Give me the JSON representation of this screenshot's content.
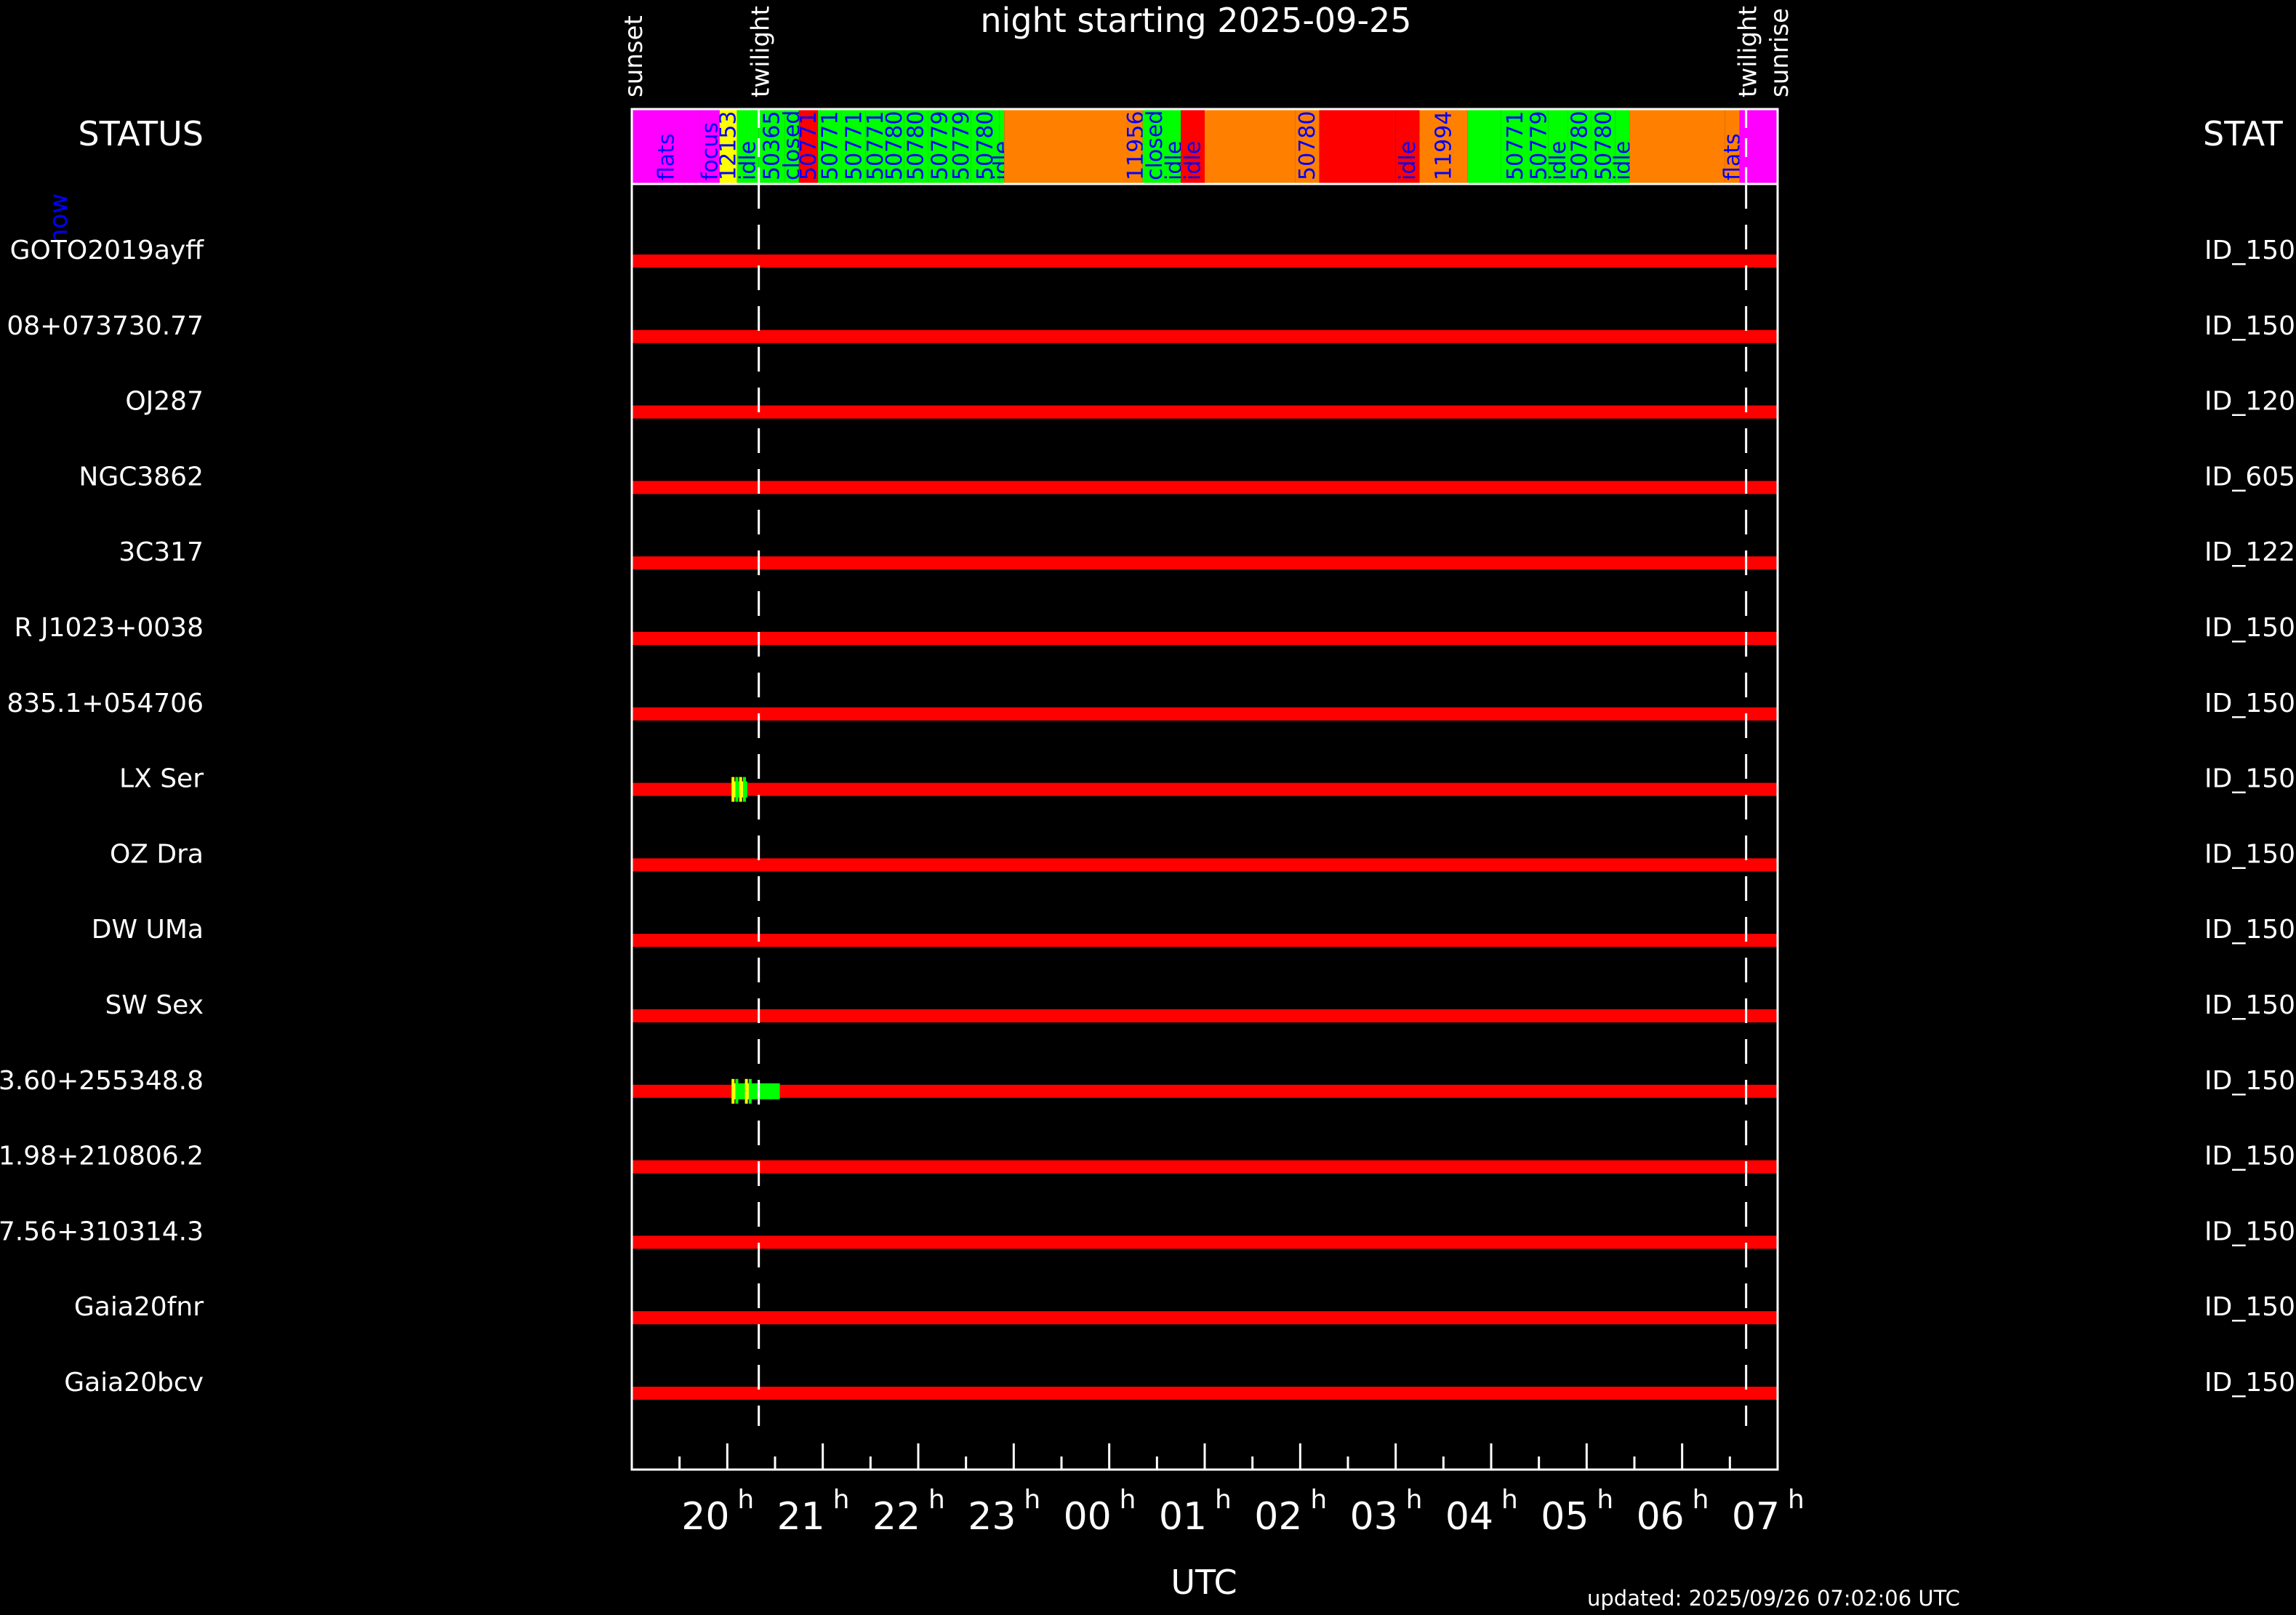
{
  "header": {
    "title": "night starting 2025-09-25",
    "status_left": "STATUS",
    "status_right": "STAT",
    "now_label": "now",
    "updated": "updated: 2025/09/26 07:02:06 UTC"
  },
  "chart_data": {
    "type": "timeline",
    "xlabel": "UTC",
    "x_range_hours": [
      19.0,
      31.0
    ],
    "x_ticks": [
      {
        "label": "20",
        "hour": 20
      },
      {
        "label": "21",
        "hour": 21
      },
      {
        "label": "22",
        "hour": 22
      },
      {
        "label": "23",
        "hour": 23
      },
      {
        "label": "00",
        "hour": 24
      },
      {
        "label": "01",
        "hour": 25
      },
      {
        "label": "02",
        "hour": 26
      },
      {
        "label": "03",
        "hour": 27
      },
      {
        "label": "04",
        "hour": 28
      },
      {
        "label": "05",
        "hour": 29
      },
      {
        "label": "06",
        "hour": 30
      },
      {
        "label": "07",
        "hour": 31
      }
    ],
    "tick_suffix": "h",
    "markers": [
      {
        "label": "sunset",
        "hour": 19.0,
        "dashed": false
      },
      {
        "label": "twilight",
        "hour": 20.33,
        "dashed": true
      },
      {
        "label": "twilight",
        "hour": 30.67,
        "dashed": true
      },
      {
        "label": "sunrise",
        "hour": 31.0,
        "dashed": false
      }
    ],
    "status_bar": [
      {
        "start": 19.0,
        "end": 19.72,
        "color": "#ff00ff",
        "label": "flats"
      },
      {
        "start": 19.72,
        "end": 19.92,
        "color": "#ff00ff",
        "label": "focus"
      },
      {
        "start": 19.92,
        "end": 20.1,
        "color": "#ffff00",
        "label": "12153"
      },
      {
        "start": 20.1,
        "end": 20.33,
        "color": "#00ff00",
        "label": "idle"
      },
      {
        "start": 20.33,
        "end": 20.6,
        "color": "#00ff00",
        "label": "50365"
      },
      {
        "start": 20.6,
        "end": 20.75,
        "color": "#00ff00",
        "label": "closed"
      },
      {
        "start": 20.75,
        "end": 20.95,
        "color": "#ff0000",
        "label": "50771"
      },
      {
        "start": 20.95,
        "end": 21.2,
        "color": "#00ff00",
        "label": "50771"
      },
      {
        "start": 21.2,
        "end": 21.45,
        "color": "#00ff00",
        "label": "50771"
      },
      {
        "start": 21.45,
        "end": 21.65,
        "color": "#00ff00",
        "label": "50771"
      },
      {
        "start": 21.65,
        "end": 21.85,
        "color": "#00ff00",
        "label": "50780"
      },
      {
        "start": 21.85,
        "end": 22.1,
        "color": "#00ff00",
        "label": "50780"
      },
      {
        "start": 22.1,
        "end": 22.35,
        "color": "#00ff00",
        "label": "50779"
      },
      {
        "start": 22.35,
        "end": 22.55,
        "color": "#00ff00",
        "label": "50779"
      },
      {
        "start": 22.55,
        "end": 22.85,
        "color": "#00ff00",
        "label": "50780"
      },
      {
        "start": 22.85,
        "end": 22.9,
        "color": "#00ff00",
        "label": "idle"
      },
      {
        "start": 22.9,
        "end": 24.2,
        "color": "#ff8000",
        "label": ""
      },
      {
        "start": 24.2,
        "end": 24.35,
        "color": "#ff8000",
        "label": "11956"
      },
      {
        "start": 24.35,
        "end": 24.6,
        "color": "#00ff00",
        "label": "closed"
      },
      {
        "start": 24.6,
        "end": 24.75,
        "color": "#00ff00",
        "label": "idle"
      },
      {
        "start": 24.75,
        "end": 25.0,
        "color": "#ff0000",
        "label": "idle"
      },
      {
        "start": 25.0,
        "end": 25.95,
        "color": "#ff8000",
        "label": ""
      },
      {
        "start": 25.95,
        "end": 26.2,
        "color": "#ff8000",
        "label": "50780"
      },
      {
        "start": 26.2,
        "end": 27.0,
        "color": "#ff0000",
        "label": ""
      },
      {
        "start": 27.0,
        "end": 27.25,
        "color": "#ff0000",
        "label": "idle"
      },
      {
        "start": 27.25,
        "end": 27.75,
        "color": "#ff8000",
        "label": "11994"
      },
      {
        "start": 27.75,
        "end": 28.1,
        "color": "#00ff00",
        "label": ""
      },
      {
        "start": 28.1,
        "end": 28.4,
        "color": "#00ff00",
        "label": "50771"
      },
      {
        "start": 28.4,
        "end": 28.6,
        "color": "#00ff00",
        "label": "50779"
      },
      {
        "start": 28.6,
        "end": 28.8,
        "color": "#00ff00",
        "label": "idle"
      },
      {
        "start": 28.8,
        "end": 29.05,
        "color": "#00ff00",
        "label": "50780"
      },
      {
        "start": 29.05,
        "end": 29.3,
        "color": "#00ff00",
        "label": "50780"
      },
      {
        "start": 29.3,
        "end": 29.45,
        "color": "#00ff00",
        "label": "idle"
      },
      {
        "start": 29.45,
        "end": 30.45,
        "color": "#ff8000",
        "label": ""
      },
      {
        "start": 30.45,
        "end": 30.6,
        "color": "#ff8000",
        "label": "flats"
      },
      {
        "start": 30.6,
        "end": 31.0,
        "color": "#ff00ff",
        "label": ""
      }
    ],
    "targets": [
      {
        "name": "GOTO2019ayff",
        "id": "ID_150",
        "segments": []
      },
      {
        "name": "08+073730.77",
        "id": "ID_150",
        "segments": []
      },
      {
        "name": "OJ287",
        "id": "ID_120",
        "segments": []
      },
      {
        "name": "NGC3862",
        "id": "ID_605",
        "segments": []
      },
      {
        "name": "3C317",
        "id": "ID_122",
        "segments": []
      },
      {
        "name": "R J1023+0038",
        "id": "ID_150",
        "segments": []
      },
      {
        "name": "835.1+054706",
        "id": "ID_150",
        "segments": []
      },
      {
        "name": "LX Ser",
        "id": "ID_150",
        "segments": [
          {
            "start": 20.06,
            "end": 20.09,
            "color": "#ffff00"
          },
          {
            "start": 20.1,
            "end": 20.13,
            "color": "#00ff00"
          },
          {
            "start": 20.14,
            "end": 20.17,
            "color": "#ffff00"
          },
          {
            "start": 20.18,
            "end": 20.21,
            "color": "#00ff00"
          }
        ]
      },
      {
        "name": "OZ Dra",
        "id": "ID_150",
        "segments": []
      },
      {
        "name": "DW UMa",
        "id": "ID_150",
        "segments": []
      },
      {
        "name": "SW Sex",
        "id": "ID_150",
        "segments": []
      },
      {
        "name": "3.60+255348.8",
        "id": "ID_150",
        "segments": [
          {
            "start": 20.06,
            "end": 20.09,
            "color": "#ffff00"
          },
          {
            "start": 20.1,
            "end": 20.2,
            "color": "#00ff00"
          },
          {
            "start": 20.2,
            "end": 20.24,
            "color": "#ffff00"
          },
          {
            "start": 20.24,
            "end": 20.55,
            "color": "#00ff00"
          }
        ]
      },
      {
        "name": "1.98+210806.2",
        "id": "ID_150",
        "segments": []
      },
      {
        "name": "7.56+310314.3",
        "id": "ID_150",
        "segments": []
      },
      {
        "name": "Gaia20fnr",
        "id": "ID_150",
        "segments": []
      },
      {
        "name": "Gaia20bcv",
        "id": "ID_150",
        "segments": []
      }
    ]
  }
}
